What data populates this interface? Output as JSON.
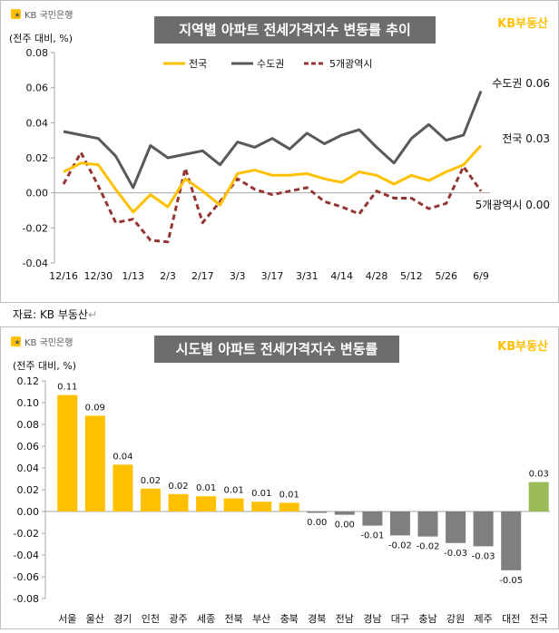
{
  "source_note": "자료: KB 부동산",
  "return_mark": "↵",
  "brand": {
    "bank_logo": "KB 국민은행",
    "property_logo": "KB부동산",
    "yellow": "#FFC000",
    "dark": "#595959",
    "red": "#943634",
    "gray": "#7F7F7F",
    "green": "#9BBB59",
    "title_bg": "#6D6D6D"
  },
  "chart_data": [
    {
      "type": "line",
      "title": "지역별 아파트 전세가격지수 변동률 추이",
      "ylabel": "(전주 대비, %)",
      "xlabel": "",
      "ylim": [
        -0.04,
        0.08
      ],
      "yticks": [
        "0.08",
        "0.06",
        "0.04",
        "0.02",
        "0.00",
        "-0.02",
        "-0.04"
      ],
      "ytick_values": [
        0.08,
        0.06,
        0.04,
        0.02,
        0.0,
        -0.02,
        -0.04
      ],
      "x_tick_labels": [
        "12/16",
        "12/30",
        "1/13",
        "2/3",
        "2/17",
        "3/3",
        "3/17",
        "3/31",
        "4/14",
        "4/28",
        "5/12",
        "5/26",
        "6/9"
      ],
      "x_tick_index": [
        0,
        2,
        4,
        6,
        8,
        10,
        12,
        14,
        16,
        18,
        20,
        22,
        24
      ],
      "point_count": 25,
      "legend_position": "top",
      "series": [
        {
          "name": "전국",
          "style": "solid",
          "color": "#FFC000",
          "values": [
            0.012,
            0.017,
            0.016,
            0.002,
            -0.011,
            -0.001,
            -0.008,
            0.008,
            0.001,
            -0.007,
            0.011,
            0.013,
            0.01,
            0.01,
            0.011,
            0.008,
            0.006,
            0.012,
            0.01,
            0.005,
            0.01,
            0.007,
            0.012,
            0.016,
            0.027
          ],
          "end_label": "전국 0.03"
        },
        {
          "name": "수도권",
          "style": "solid",
          "color": "#595959",
          "values": [
            0.035,
            0.033,
            0.031,
            0.021,
            0.003,
            0.027,
            0.02,
            0.022,
            0.024,
            0.016,
            0.029,
            0.026,
            0.031,
            0.025,
            0.034,
            0.028,
            0.033,
            0.036,
            0.026,
            0.017,
            0.031,
            0.039,
            0.03,
            0.033,
            0.058
          ],
          "end_label": "수도권 0.06"
        },
        {
          "name": "5개광역시",
          "style": "dashed",
          "color": "#943634",
          "values": [
            0.005,
            0.023,
            0.004,
            -0.017,
            -0.015,
            -0.027,
            -0.028,
            0.014,
            -0.017,
            -0.005,
            0.008,
            0.002,
            -0.001,
            0.001,
            0.003,
            -0.005,
            -0.008,
            -0.012,
            0.001,
            -0.003,
            -0.003,
            -0.009,
            -0.006,
            0.015,
            0.001
          ],
          "end_label": "5개광역시 0.00"
        }
      ]
    },
    {
      "type": "bar",
      "title": "시도별 아파트 전세가격지수 변동률",
      "ylabel": "(전주 대비, %)",
      "xlabel": "",
      "ylim": [
        -0.08,
        0.12
      ],
      "yticks": [
        "0.12",
        "0.10",
        "0.08",
        "0.06",
        "0.04",
        "0.02",
        "0.00",
        "-0.02",
        "-0.04",
        "-0.06",
        "-0.08"
      ],
      "ytick_values": [
        0.12,
        0.1,
        0.08,
        0.06,
        0.04,
        0.02,
        0.0,
        -0.02,
        -0.04,
        -0.06,
        -0.08
      ],
      "categories": [
        "서울",
        "울산",
        "경기",
        "인천",
        "광주",
        "세종",
        "전북",
        "부산",
        "충북",
        "경북",
        "전남",
        "경남",
        "대구",
        "충남",
        "강원",
        "제주",
        "대전",
        "전국"
      ],
      "values": [
        0.107,
        0.088,
        0.043,
        0.021,
        0.016,
        0.014,
        0.012,
        0.009,
        0.008,
        -0.001,
        -0.003,
        -0.013,
        -0.022,
        -0.023,
        -0.029,
        -0.032,
        -0.054,
        0.027
      ],
      "labels": [
        "0.11",
        "0.09",
        "0.04",
        "0.02",
        "0.02",
        "0.01",
        "0.01",
        "0.01",
        "0.01",
        "0.00",
        "0.00",
        "-0.01",
        "-0.02",
        "-0.02",
        "-0.03",
        "-0.03",
        "-0.05",
        "0.03"
      ],
      "colors": [
        "#FFC000",
        "#FFC000",
        "#FFC000",
        "#FFC000",
        "#FFC000",
        "#FFC000",
        "#FFC000",
        "#FFC000",
        "#FFC000",
        "#7F7F7F",
        "#7F7F7F",
        "#7F7F7F",
        "#7F7F7F",
        "#7F7F7F",
        "#7F7F7F",
        "#7F7F7F",
        "#7F7F7F",
        "#9BBB59"
      ]
    }
  ]
}
